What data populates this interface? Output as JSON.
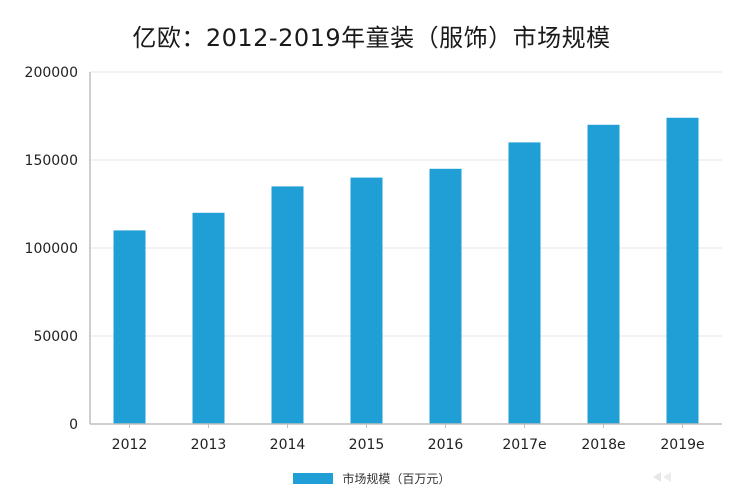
{
  "chart_data": {
    "type": "bar",
    "title": "亿欧：2012-2019年童装（服饰）市场规模",
    "categories": [
      "2012",
      "2013",
      "2014",
      "2015",
      "2016",
      "2017e",
      "2018e",
      "2019e"
    ],
    "series": [
      {
        "name": "市场规模（百万元）",
        "values": [
          110000,
          120000,
          135000,
          140000,
          145000,
          160000,
          170000,
          174000
        ],
        "color": "#1f9fd6"
      }
    ],
    "ylim": [
      0,
      200000
    ],
    "yticks": [
      "0",
      "50000",
      "100000",
      "150000",
      "200000"
    ],
    "xlabel": "",
    "ylabel": "",
    "grid": true,
    "legend": "bottom"
  }
}
